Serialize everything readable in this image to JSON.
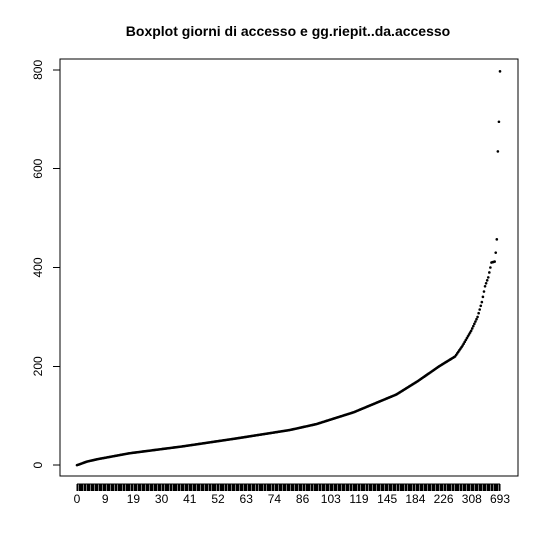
{
  "chart_data": {
    "type": "scatter",
    "title": "Boxplot giorni di accesso e gg.riepit..da.accesso",
    "xlabel": "",
    "ylabel": "",
    "x_count": 370,
    "ylim": [
      -22,
      822
    ],
    "y_ticks": [
      0,
      200,
      400,
      600,
      800
    ],
    "x_tick_labels": [
      "0",
      "9",
      "19",
      "30",
      "41",
      "52",
      "63",
      "74",
      "86",
      "103",
      "119",
      "145",
      "184",
      "226",
      "308",
      "693"
    ],
    "grid": false,
    "legend": "none",
    "point_color": "#000000",
    "curve_keyframes": [
      [
        1,
        0
      ],
      [
        5,
        3
      ],
      [
        10,
        7
      ],
      [
        20,
        12
      ],
      [
        50,
        24
      ],
      [
        100,
        38
      ],
      [
        150,
        54
      ],
      [
        200,
        71
      ],
      [
        225,
        83
      ],
      [
        260,
        107
      ],
      [
        300,
        143
      ],
      [
        320,
        170
      ],
      [
        340,
        200
      ],
      [
        355,
        220
      ],
      [
        362,
        242
      ],
      [
        370,
        272
      ],
      [
        376,
        300
      ],
      [
        380,
        330
      ],
      [
        383,
        362
      ],
      [
        386,
        380
      ],
      [
        389,
        410
      ],
      [
        392,
        412
      ],
      [
        393,
        430
      ],
      [
        394,
        457
      ],
      [
        395,
        635
      ],
      [
        396,
        695
      ],
      [
        397,
        797
      ]
    ]
  }
}
